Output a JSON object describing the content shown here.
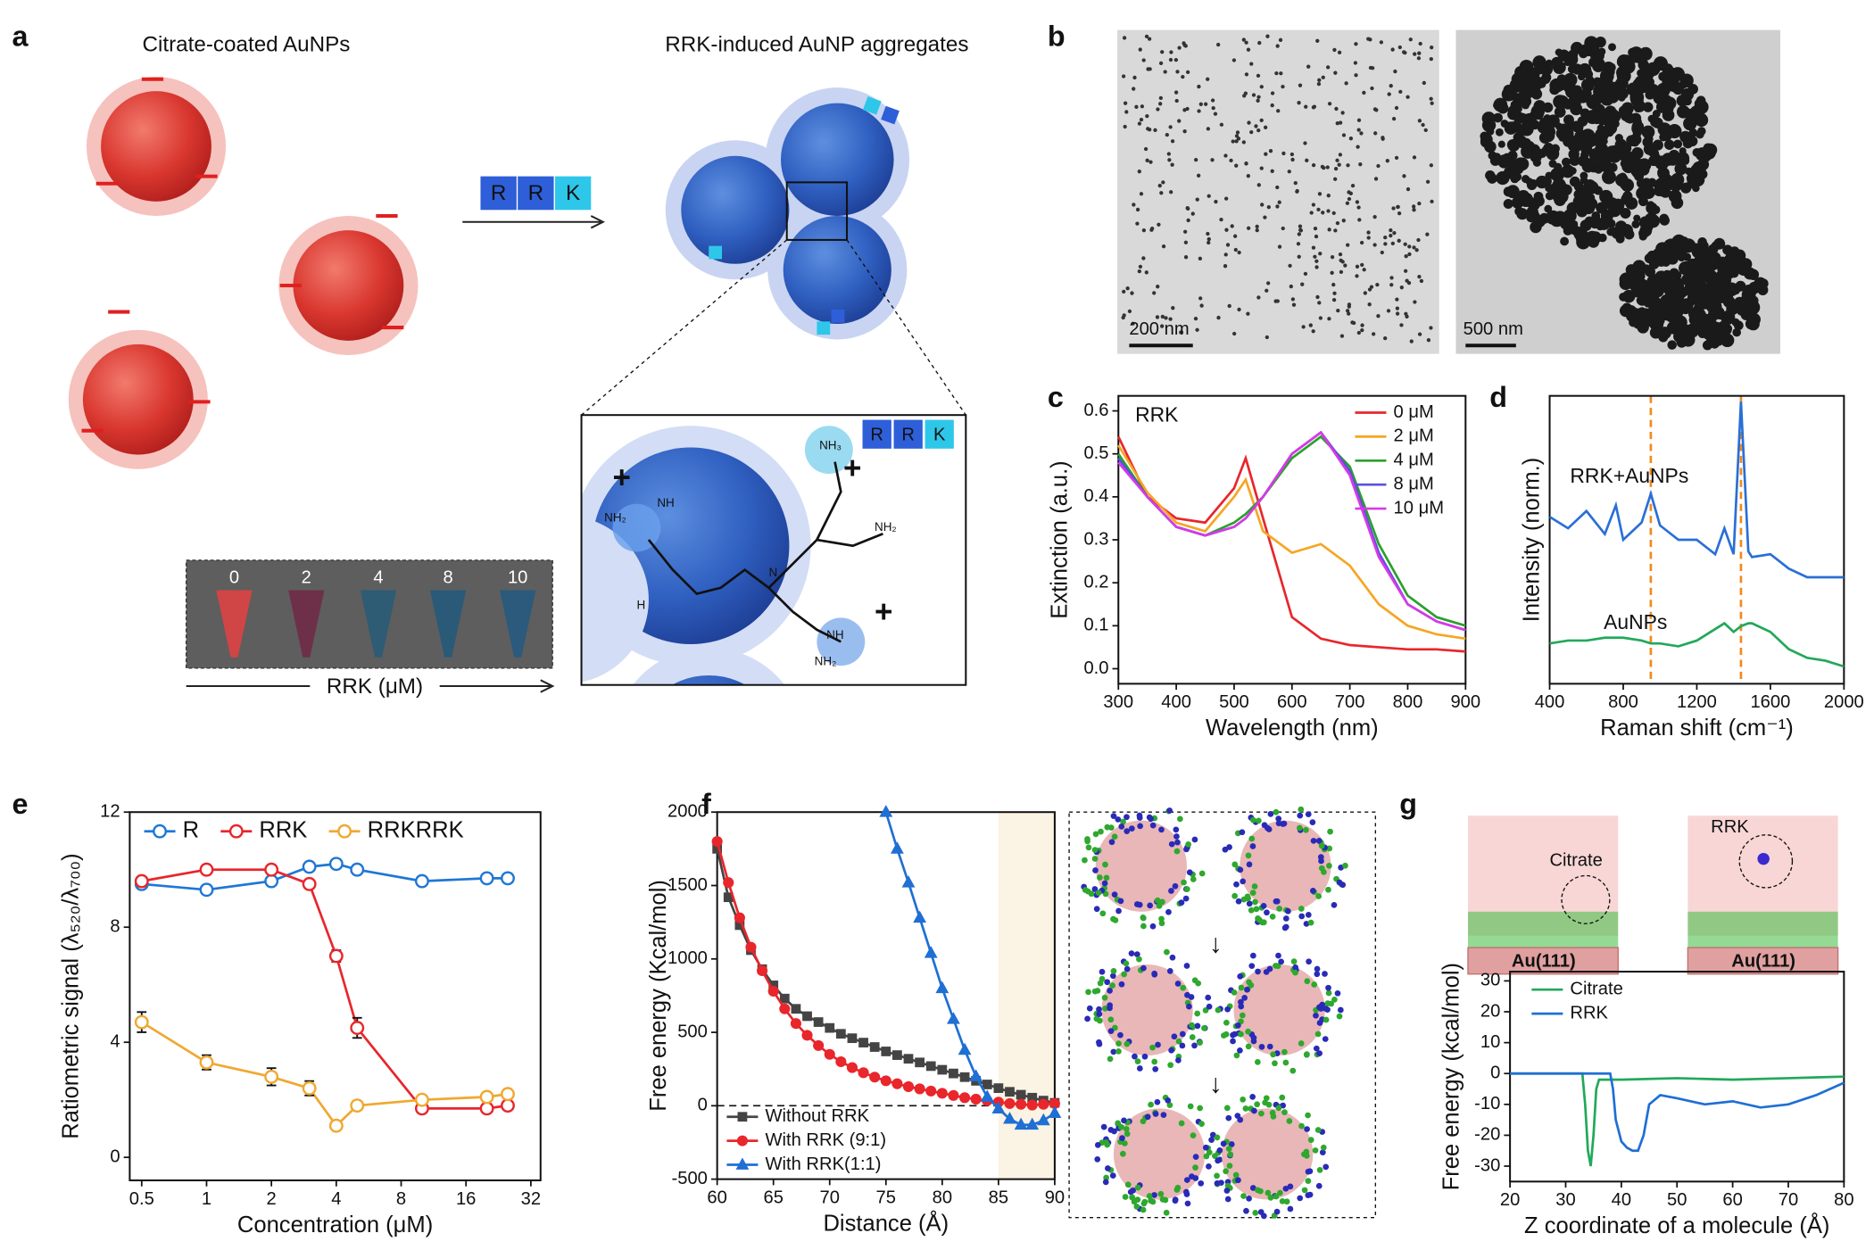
{
  "panel_labels": [
    "a",
    "b",
    "c",
    "d",
    "e",
    "f",
    "g"
  ],
  "illustrations": {
    "a_left_title": "Citrate-coated AuNPs",
    "a_right_title": "RRK-induced AuNP aggregates",
    "peptide": [
      "R",
      "R",
      "K"
    ],
    "inset_peptide": [
      "R",
      "R",
      "K"
    ],
    "tubes": [
      "0",
      "2",
      "4",
      "8",
      "10"
    ],
    "tube_axis": "RRK (μM)",
    "chem": [
      "NH",
      "NH₂",
      "NH₃",
      "NH₂",
      "NH",
      "NH₂",
      "H",
      "N"
    ],
    "b_scale": [
      "200 nm",
      "500 nm"
    ],
    "g_labels": [
      "RRK",
      "Citrate",
      "Au(111)",
      "Au(111)"
    ]
  },
  "chart_data": [
    {
      "type": "line",
      "x_label": "Wavelength (nm)",
      "y_label": "Extinction (a.u.)",
      "annotations": [
        "RRK"
      ],
      "x": [
        300,
        350,
        400,
        450,
        500,
        520,
        550,
        600,
        650,
        700,
        750,
        800,
        850,
        900
      ],
      "xlim": [
        300,
        900
      ],
      "xticks": [
        300,
        400,
        500,
        600,
        700,
        800,
        900
      ],
      "ylim": [
        -0.035,
        0.635
      ],
      "yticks": [
        {
          "value": 0,
          "label": "0.0"
        },
        0.1,
        0.2,
        0.3,
        0.4,
        0.5,
        0.6
      ],
      "legend": "upper right",
      "series": [
        {
          "name": "0 μM",
          "color": "#e8262b",
          "values": [
            0.54,
            0.4,
            0.35,
            0.34,
            0.42,
            0.49,
            0.35,
            0.12,
            0.07,
            0.055,
            0.05,
            0.045,
            0.045,
            0.04
          ]
        },
        {
          "name": "2 μM",
          "color": "#f5a623",
          "values": [
            0.52,
            0.41,
            0.34,
            0.32,
            0.4,
            0.44,
            0.32,
            0.27,
            0.29,
            0.24,
            0.15,
            0.1,
            0.08,
            0.07
          ]
        },
        {
          "name": "4 μM",
          "color": "#2ca02c",
          "values": [
            0.5,
            0.4,
            0.33,
            0.31,
            0.34,
            0.36,
            0.4,
            0.49,
            0.54,
            0.47,
            0.29,
            0.17,
            0.12,
            0.1
          ]
        },
        {
          "name": "8 μM",
          "color": "#5a4fe0",
          "values": [
            0.49,
            0.4,
            0.33,
            0.31,
            0.33,
            0.35,
            0.4,
            0.5,
            0.55,
            0.46,
            0.27,
            0.15,
            0.11,
            0.09
          ]
        },
        {
          "name": "10 μM",
          "color": "#d63ae6",
          "values": [
            0.48,
            0.4,
            0.33,
            0.31,
            0.33,
            0.35,
            0.4,
            0.5,
            0.55,
            0.45,
            0.26,
            0.15,
            0.11,
            0.09
          ]
        }
      ]
    },
    {
      "type": "line",
      "x_label": "Raman shift (cm⁻¹)",
      "y_label": "Intensity (norm.)",
      "annotations": [
        "RRK+AuNPs",
        "AuNPs"
      ],
      "x": [
        400,
        500,
        600,
        700,
        760,
        800,
        900,
        950,
        1000,
        1100,
        1200,
        1300,
        1350,
        1400,
        1440,
        1480,
        1500,
        1600,
        1700,
        1800,
        1900,
        2000
      ],
      "xlim": [
        400,
        2000
      ],
      "xticks": [
        400,
        800,
        1200,
        1600,
        2000
      ],
      "ylim": [
        0,
        1
      ],
      "vlines": [
        950,
        1440
      ],
      "vline_color": "#f08a1c",
      "series": [
        {
          "color": "#2a6fd6",
          "values": [
            0.58,
            0.54,
            0.6,
            0.52,
            0.62,
            0.5,
            0.56,
            0.66,
            0.55,
            0.5,
            0.5,
            0.45,
            0.54,
            0.45,
            0.98,
            0.46,
            0.44,
            0.45,
            0.4,
            0.37,
            0.37,
            0.37
          ]
        },
        {
          "color": "#22a85a",
          "values": [
            0.14,
            0.15,
            0.15,
            0.16,
            0.16,
            0.16,
            0.15,
            0.14,
            0.14,
            0.13,
            0.15,
            0.19,
            0.21,
            0.18,
            0.2,
            0.21,
            0.21,
            0.18,
            0.12,
            0.09,
            0.08,
            0.06
          ]
        }
      ]
    },
    {
      "type": "line",
      "x_label": "Concentration (μM)",
      "y_label": "Ratiometric signal (λ₅₂₀/λ₇₀₀)",
      "xscale": "log",
      "x": [
        0.5,
        1,
        2,
        3,
        4,
        5,
        10,
        20,
        25
      ],
      "xlim": [
        0.44,
        35.5
      ],
      "xticks": [
        0.5,
        1,
        2,
        4,
        8,
        16,
        32
      ],
      "ylim": [
        -0.8,
        12
      ],
      "yticks": [
        0,
        4,
        8,
        12
      ],
      "legend": "top",
      "series": [
        {
          "name": "R",
          "color": "#1f77d4",
          "marker": "open-circle",
          "values": [
            9.5,
            9.3,
            9.6,
            10.1,
            10.2,
            10.0,
            9.6,
            9.7,
            9.7
          ]
        },
        {
          "name": "RRK",
          "color": "#e8262b",
          "marker": "open-circle",
          "values": [
            9.6,
            10.0,
            10.0,
            9.5,
            7.0,
            4.5,
            1.7,
            1.7,
            1.8
          ],
          "errors": [
            0.1,
            0.1,
            0.1,
            0.1,
            0.2,
            0.35,
            0.1,
            0.1,
            0.1
          ]
        },
        {
          "name": "RRKRRK",
          "color": "#f0a830",
          "marker": "open-circle",
          "values": [
            4.7,
            3.3,
            2.8,
            2.4,
            1.1,
            1.8,
            2.0,
            2.1,
            2.2
          ],
          "errors": [
            0.35,
            0.25,
            0.3,
            0.25,
            0.1,
            0.1,
            0.1,
            0.1,
            0.1
          ]
        }
      ]
    },
    {
      "type": "line",
      "x_label": "Distance (Å)",
      "y_label": "Free energy (Kcal/mol)",
      "xlim": [
        60,
        90
      ],
      "xticks": [
        60,
        65,
        70,
        75,
        80,
        85,
        90
      ],
      "ylim": [
        -500,
        2000
      ],
      "yticks": [
        -500,
        0,
        500,
        1000,
        1500,
        2000
      ],
      "hlines": [
        0
      ],
      "highlight": [
        85,
        90
      ],
      "highlight_color": "#fbf3e3",
      "legend": "lower left",
      "series": [
        {
          "name": "Without RRK",
          "color": "#444444",
          "marker": "square",
          "x": [
            60,
            61,
            62,
            63,
            64,
            65,
            66,
            67,
            68,
            69,
            70,
            71,
            72,
            73,
            74,
            75,
            76,
            77,
            78,
            79,
            80,
            81,
            82,
            83,
            84,
            85,
            86,
            87,
            88,
            89,
            90
          ],
          "values": [
            1750,
            1420,
            1230,
            1060,
            930,
            820,
            730,
            660,
            610,
            570,
            530,
            490,
            460,
            430,
            400,
            370,
            345,
            320,
            295,
            270,
            245,
            220,
            195,
            170,
            145,
            120,
            95,
            75,
            55,
            35,
            20
          ]
        },
        {
          "name": "With RRK (9:1)",
          "color": "#e8262b",
          "marker": "circle",
          "x": [
            60,
            61,
            62,
            63,
            64,
            65,
            66,
            67,
            68,
            69,
            70,
            71,
            72,
            73,
            74,
            75,
            76,
            77,
            78,
            79,
            80,
            81,
            82,
            83,
            84,
            85,
            86,
            87,
            88,
            89,
            90
          ],
          "values": [
            1800,
            1520,
            1280,
            1080,
            920,
            780,
            660,
            560,
            480,
            410,
            350,
            300,
            260,
            225,
            195,
            170,
            150,
            130,
            115,
            100,
            85,
            70,
            55,
            45,
            35,
            25,
            15,
            10,
            5,
            10,
            15
          ]
        },
        {
          "name": "With RRK(1:1)",
          "color": "#1f6fd4",
          "marker": "triangle",
          "x": [
            75,
            76,
            77,
            78,
            79,
            80,
            81,
            82,
            83,
            84,
            85,
            86,
            87,
            88,
            89,
            90
          ],
          "values": [
            2000,
            1750,
            1520,
            1280,
            1040,
            800,
            590,
            380,
            200,
            60,
            -20,
            -90,
            -130,
            -130,
            -100,
            -50
          ]
        }
      ]
    },
    {
      "type": "line",
      "x_label": "Z coordinate of a molecule (Å)",
      "y_label": "Free energy (kcal/mol)",
      "xlim": [
        20,
        80
      ],
      "xticks": [
        20,
        30,
        40,
        50,
        60,
        70,
        80
      ],
      "ylim": [
        -35,
        33
      ],
      "yticks": [
        -30,
        -20,
        -10,
        0,
        10,
        20,
        30
      ],
      "legend": "upper left",
      "series": [
        {
          "name": "Citrate",
          "color": "#22a85a",
          "x": [
            20,
            30,
            33,
            33.5,
            34,
            34.5,
            35,
            35.5,
            36,
            40,
            50,
            60,
            70,
            80
          ],
          "values": [
            0,
            0,
            0,
            -10,
            -25,
            -30,
            -20,
            -5,
            -2,
            -2,
            -1.5,
            -2,
            -1.5,
            -1
          ]
        },
        {
          "name": "RRK",
          "color": "#1f6fd4",
          "x": [
            20,
            30,
            37,
            38,
            38.5,
            39,
            40,
            41,
            42,
            43,
            44,
            45,
            47,
            50,
            55,
            60,
            65,
            70,
            75,
            80
          ],
          "values": [
            0,
            0,
            0,
            0,
            -5,
            -15,
            -22,
            -24,
            -25,
            -25,
            -20,
            -10,
            -7,
            -8,
            -10,
            -9,
            -11,
            -10,
            -7,
            -3
          ]
        }
      ]
    }
  ]
}
